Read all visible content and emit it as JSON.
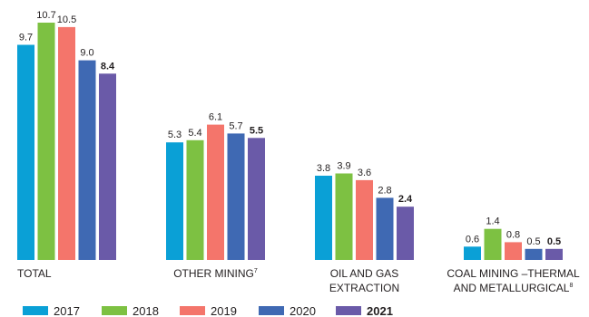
{
  "chart_data": {
    "type": "bar",
    "categories": [
      {
        "lines": [
          "TOTAL"
        ],
        "sup": ""
      },
      {
        "lines": [
          "OTHER MINING"
        ],
        "sup": "7"
      },
      {
        "lines": [
          "OIL AND GAS",
          "EXTRACTION"
        ],
        "sup": ""
      },
      {
        "lines": [
          "COAL MINING –THERMAL",
          "AND METALLURGICAL"
        ],
        "sup": "8"
      }
    ],
    "series": [
      {
        "name": "2017",
        "color": "#0aa0d6",
        "values": [
          9.7,
          5.3,
          3.8,
          0.6
        ],
        "labels": [
          "9.7",
          "5.3",
          "3.8",
          "0.6"
        ]
      },
      {
        "name": "2018",
        "color": "#7dc142",
        "values": [
          10.7,
          5.4,
          3.9,
          1.4
        ],
        "labels": [
          "10.7",
          "5.4",
          "3.9",
          "1.4"
        ]
      },
      {
        "name": "2019",
        "color": "#f4756b",
        "values": [
          10.5,
          6.1,
          3.6,
          0.8
        ],
        "labels": [
          "10.5",
          "6.1",
          "3.6",
          "0.8"
        ]
      },
      {
        "name": "2020",
        "color": "#3f69b3",
        "values": [
          9.0,
          5.7,
          2.8,
          0.5
        ],
        "labels": [
          "9.0",
          "5.7",
          "2.8",
          "0.5"
        ]
      },
      {
        "name": "2021",
        "color": "#6a5aa8",
        "values": [
          8.4,
          5.5,
          2.4,
          0.5
        ],
        "labels": [
          "8.4",
          "5.5",
          "2.4",
          "0.5"
        ],
        "bold": true
      }
    ],
    "title": "",
    "xlabel": "",
    "ylabel": "",
    "ylim": [
      0,
      10.7
    ],
    "grid": false,
    "legend_position": "bottom-left"
  }
}
